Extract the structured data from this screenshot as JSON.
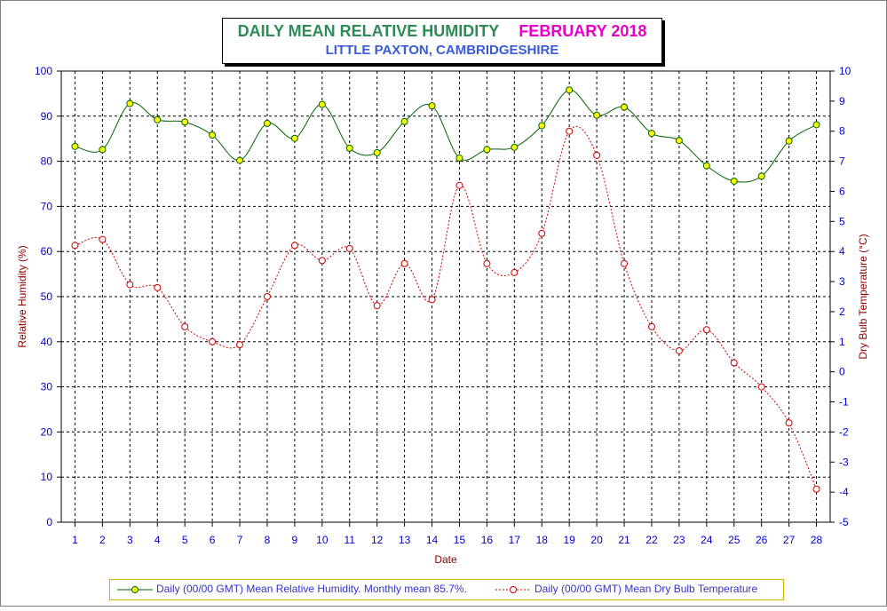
{
  "title": {
    "main": "DAILY MEAN RELATIVE HUMIDITY",
    "period": "FEBRUARY 2018",
    "location": "LITTLE PAXTON, CAMBRIDGESHIRE"
  },
  "colors": {
    "title_main": "#2e8b57",
    "title_period": "#e800c8",
    "location": "#3a5bd8",
    "humidity_line": "#006400",
    "humidity_marker": "#ffff00",
    "temperature_line": "#cc0000",
    "axis_text": "#0000cc",
    "axis_label": "#8b0000"
  },
  "chart_data": {
    "type": "line",
    "xlabel": "Date",
    "ylabel": "Relative Humidity (%)",
    "y2label": "Dry Bulb Temperature (°C)",
    "x": [
      1,
      2,
      3,
      4,
      5,
      6,
      7,
      8,
      9,
      10,
      11,
      12,
      13,
      14,
      15,
      16,
      17,
      18,
      19,
      20,
      21,
      22,
      23,
      24,
      25,
      26,
      27,
      28
    ],
    "ylim": [
      0,
      100
    ],
    "y2lim": [
      -5,
      10
    ],
    "yticks": [
      0,
      10,
      20,
      30,
      40,
      50,
      60,
      70,
      80,
      90,
      100
    ],
    "y2ticks": [
      -5,
      -4,
      -3,
      -2,
      -1,
      0,
      1,
      2,
      3,
      4,
      5,
      6,
      7,
      8,
      9,
      10
    ],
    "grid": true,
    "legend_position": "bottom",
    "series": [
      {
        "name": "Daily (00/00 GMT) Mean Relative Humidity. Monthly mean 85.7%.",
        "axis": "left",
        "values": [
          83.3,
          82.6,
          92.8,
          89.2,
          88.7,
          85.8,
          80.2,
          88.4,
          85.1,
          92.6,
          82.9,
          81.9,
          88.8,
          92.3,
          80.7,
          82.6,
          83.1,
          87.9,
          95.8,
          90.2,
          92.0,
          86.2,
          84.6,
          79.0,
          75.6,
          76.7,
          84.5,
          88.1
        ]
      },
      {
        "name": "Daily (00/00 GMT) Mean Dry Bulb Temperature",
        "axis": "right",
        "values": [
          4.2,
          4.4,
          2.9,
          2.8,
          1.5,
          1.0,
          0.9,
          2.5,
          4.2,
          3.7,
          4.1,
          2.2,
          3.6,
          2.4,
          6.2,
          3.6,
          3.3,
          4.6,
          8.0,
          7.2,
          3.6,
          1.5,
          0.7,
          1.4,
          0.3,
          -0.5,
          -1.7,
          -3.9
        ]
      }
    ]
  }
}
